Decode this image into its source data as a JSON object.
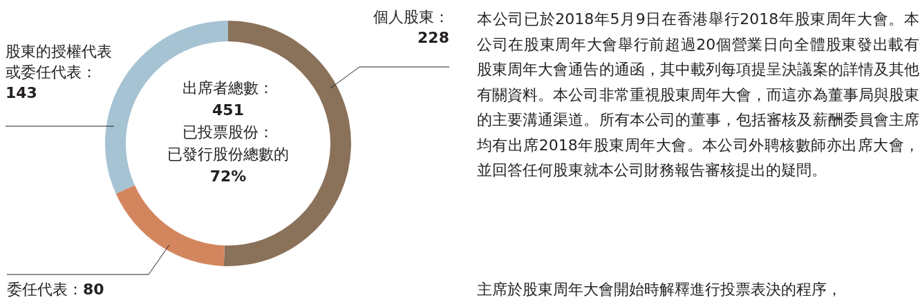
{
  "chart_data": {
    "type": "donut",
    "categories": [
      "個人股東",
      "委任代表",
      "股東的授權代表或委任代表"
    ],
    "values": [
      228,
      80,
      143
    ],
    "colors": [
      "#8a7159",
      "#d3865e",
      "#a6c3d3"
    ],
    "value_labels": [
      "：\n228",
      "：80",
      "：\n143"
    ],
    "annotations": [
      "出席者總數：",
      "451",
      "已投票股份：",
      "已發行股份總數的",
      "72%",
      "本公司已於2018年5月9日在香港舉行2018年股東周年大會。本公司在股東周年大會舉行前超過20個營業日向全體股東發出載有股東周年大會通告的通函，其中載列每項提呈決議案的詳情及其他有關資料。本公司非常重視股東周年大會，而這亦為董事局與股東的主要溝通渠道。所有本公司的董事，包括審核及薪酬委員會主席均有出席2018年股東周年大會。本公司外聘核數師亦出席大會，並回答任何股東就本公司財務報告審核提出的疑問。",
      "主席於股東周年大會開始時解釋進行投票表決的程序，"
    ]
  }
}
